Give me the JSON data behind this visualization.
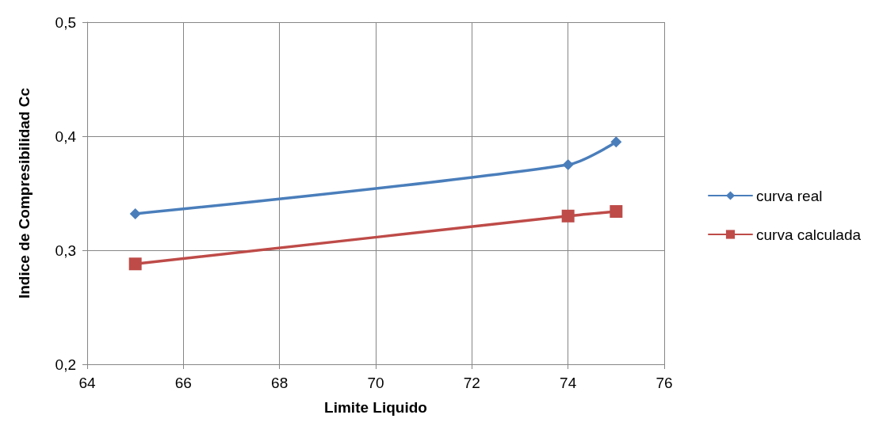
{
  "chart_data": {
    "type": "line",
    "xlabel": "Limite Liquido",
    "ylabel": "Indice de Compresibilidad Cc",
    "xlim": [
      64,
      76
    ],
    "xticks": [
      64,
      66,
      68,
      70,
      72,
      74,
      76
    ],
    "ylim": [
      0.2,
      0.5
    ],
    "yticks": [
      {
        "value": 0.2,
        "label": "0,2"
      },
      {
        "value": 0.3,
        "label": "0,3"
      },
      {
        "value": 0.4,
        "label": "0,4"
      },
      {
        "value": 0.5,
        "label": "0,5"
      }
    ],
    "grid": true,
    "legend": "right",
    "series": [
      {
        "name": "curva real",
        "color": "#4a7ebb",
        "marker": "diamond",
        "x": [
          65,
          74,
          75
        ],
        "values": [
          0.332,
          0.375,
          0.395
        ]
      },
      {
        "name": "curva calculada",
        "color": "#be4b48",
        "marker": "square",
        "x": [
          65,
          74,
          75
        ],
        "values": [
          0.288,
          0.33,
          0.334
        ]
      }
    ]
  }
}
